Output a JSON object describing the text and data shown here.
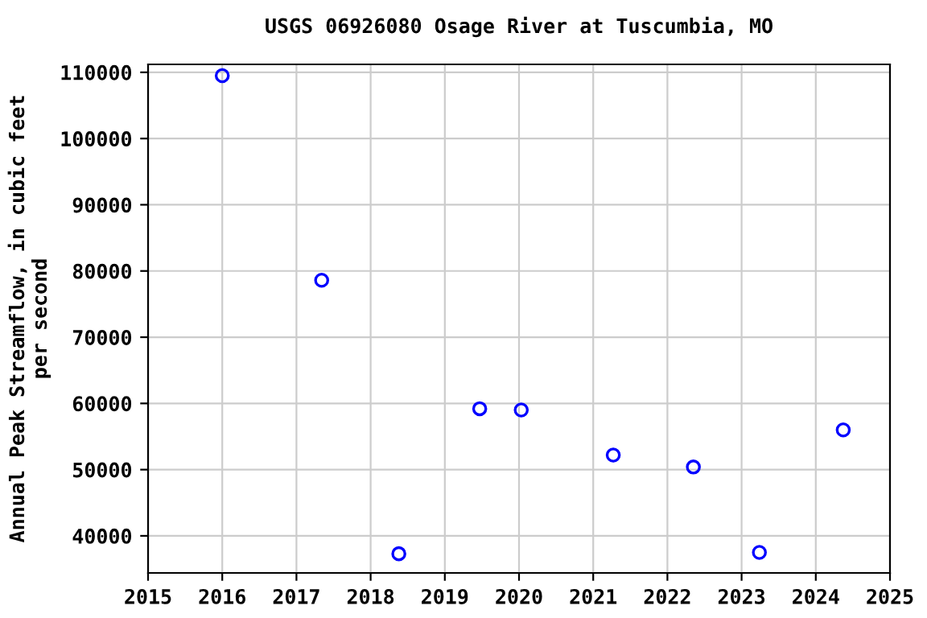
{
  "chart_data": {
    "type": "scatter",
    "title": "USGS 06926080 Osage River at Tuscumbia, MO",
    "ylabel": "Annual Peak Streamflow, in cubic feet\nper second",
    "x": [
      2016.0,
      2017.34,
      2018.38,
      2019.47,
      2020.03,
      2021.27,
      2022.35,
      2023.24,
      2024.37
    ],
    "series": [
      {
        "color": "#0000ff",
        "values": [
          109500,
          78600,
          37300,
          59200,
          59000,
          52200,
          50400,
          37500,
          56000
        ]
      }
    ],
    "xlim": [
      2015,
      2025
    ],
    "xticks": [
      2015,
      2016,
      2017,
      2018,
      2019,
      2020,
      2021,
      2022,
      2023,
      2024,
      2025
    ],
    "ylim": [
      34400,
      111200
    ],
    "yticks": [
      40000,
      50000,
      60000,
      70000,
      80000,
      90000,
      100000,
      110000
    ],
    "grid": true,
    "marker": "circle"
  }
}
